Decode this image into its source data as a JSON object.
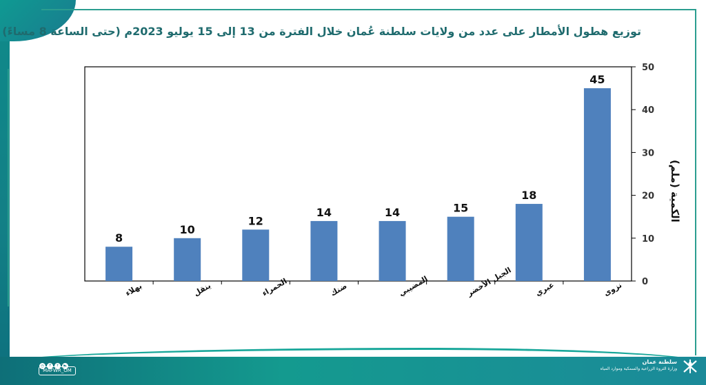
{
  "title": "توزيع هطول الأمطار على عدد من ولايات سلطنة عُمان خلال الفترة من 13 إلى 15 يوليو 2023م (حتى الساعة 8 مساءً)",
  "footer": {
    "handle": "MAFWR_OM",
    "ministry_name": "سلطنة عمان",
    "ministry_sub": "وزارة الثروة الزراعية والسمكية وموارد المياه"
  },
  "colors": {
    "bar": "#4f81bd",
    "title": "#1f6b6e",
    "accent": "#2a9d8f"
  },
  "chart_data": {
    "type": "bar",
    "title": "توزيع هطول الأمطار على عدد من ولايات سلطنة عُمان خلال الفترة من 13 إلى 15 يوليو 2023م (حتى الساعة 8 مساءً)",
    "ylabel": "الكمية (ملم)",
    "xlabel": "",
    "y_axis_side": "right",
    "categories": [
      "بهلاء",
      "ينقل",
      "الحمراء",
      "ضنك",
      "المضيبي",
      "الجبل الأخضر",
      "عبري",
      "نزوى"
    ],
    "values": [
      8,
      10,
      12,
      14,
      14,
      15,
      18,
      45
    ],
    "ylim": [
      0,
      50
    ],
    "yticks": [
      0,
      10,
      20,
      30,
      40,
      50
    ],
    "data_labels": true,
    "grid": false,
    "legend": "none"
  }
}
